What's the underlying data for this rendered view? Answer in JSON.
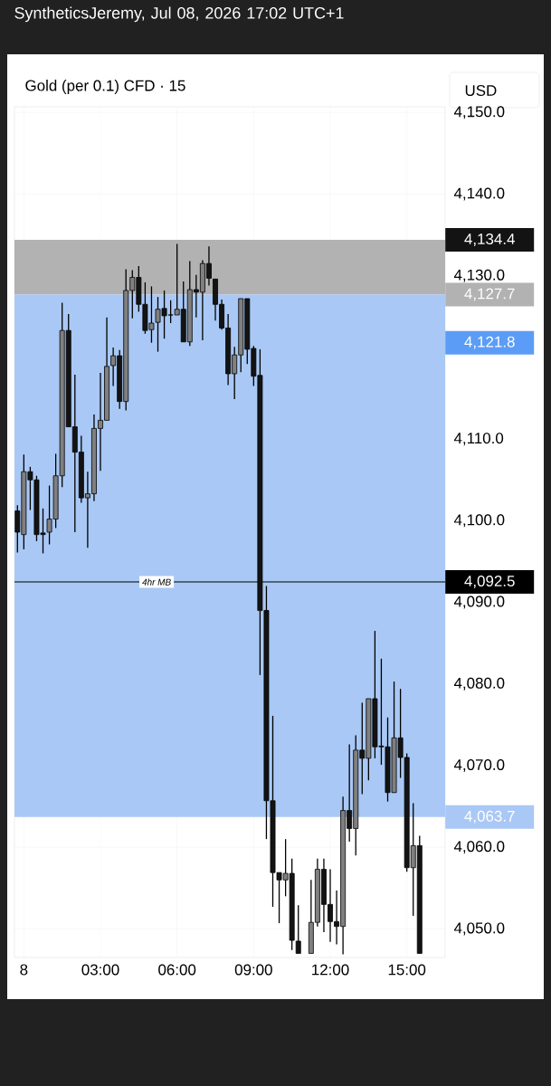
{
  "chart_data": {
    "type": "candlestick",
    "title": "Gold (per 0.1) CFD · 15",
    "subtitle": "SyntheticsJeremy, Jul 08, 2026 17:02 UTC+1",
    "ylabel": "USD",
    "x": [
      "2026-07-07T23:45",
      "2026-07-08T00:00",
      "2026-07-08T00:15",
      "2026-07-08T00:30",
      "2026-07-08T00:45",
      "2026-07-08T01:00",
      "2026-07-08T01:15",
      "2026-07-08T01:30",
      "2026-07-08T01:45",
      "2026-07-08T02:00",
      "2026-07-08T02:15",
      "2026-07-08T02:30",
      "2026-07-08T02:45",
      "2026-07-08T03:00",
      "2026-07-08T03:15",
      "2026-07-08T03:30",
      "2026-07-08T03:45",
      "2026-07-08T04:00",
      "2026-07-08T04:15",
      "2026-07-08T04:30",
      "2026-07-08T04:45",
      "2026-07-08T05:00",
      "2026-07-08T05:15",
      "2026-07-08T05:30",
      "2026-07-08T05:45",
      "2026-07-08T06:00",
      "2026-07-08T06:15",
      "2026-07-08T06:30",
      "2026-07-08T06:45",
      "2026-07-08T07:00",
      "2026-07-08T07:15",
      "2026-07-08T07:30",
      "2026-07-08T07:45",
      "2026-07-08T08:00",
      "2026-07-08T08:15",
      "2026-07-08T08:30",
      "2026-07-08T08:45",
      "2026-07-08T09:00",
      "2026-07-08T09:15",
      "2026-07-08T09:30",
      "2026-07-08T09:45",
      "2026-07-08T10:00",
      "2026-07-08T10:15",
      "2026-07-08T10:30",
      "2026-07-08T10:45",
      "2026-07-08T11:15",
      "2026-07-08T11:30",
      "2026-07-08T11:45",
      "2026-07-08T12:00",
      "2026-07-08T12:15",
      "2026-07-08T12:30",
      "2026-07-08T12:45",
      "2026-07-08T13:00",
      "2026-07-08T13:15",
      "2026-07-08T13:30",
      "2026-07-08T13:45",
      "2026-07-08T14:00",
      "2026-07-08T14:15",
      "2026-07-08T14:30",
      "2026-07-08T14:45",
      "2026-07-08T15:00",
      "2026-07-08T15:15",
      "2026-07-08T15:30"
    ],
    "ohlc": [
      [
        4101.2,
        4101.9,
        4096.1,
        4098.6
      ],
      [
        4098.3,
        4108.1,
        4096.5,
        4106.0
      ],
      [
        4106.0,
        4106.6,
        4101.3,
        4105.0
      ],
      [
        4105.0,
        4105.5,
        4097.5,
        4098.3
      ],
      [
        4098.5,
        4101.5,
        4096.0,
        4098.3
      ],
      [
        4098.6,
        4104.3,
        4097.1,
        4100.2
      ],
      [
        4100.2,
        4108.2,
        4099.1,
        4105.5
      ],
      [
        4105.5,
        4126.7,
        4104.1,
        4123.3
      ],
      [
        4123.3,
        4125.3,
        4111.5,
        4111.5
      ],
      [
        4111.5,
        4117.9,
        4098.6,
        4108.4
      ],
      [
        4108.4,
        4110.4,
        4102.2,
        4102.8
      ],
      [
        4102.8,
        4106.0,
        4096.7,
        4103.3
      ],
      [
        4103.3,
        4113.0,
        4102.4,
        4111.3
      ],
      [
        4111.3,
        4118.1,
        4106.1,
        4112.3
      ],
      [
        4112.3,
        4124.9,
        4112.3,
        4118.9
      ],
      [
        4119.0,
        4121.2,
        4116.5,
        4120.2
      ],
      [
        4120.2,
        4120.9,
        4113.7,
        4114.6
      ],
      [
        4114.6,
        4130.8,
        4113.5,
        4128.2
      ],
      [
        4128.2,
        4130.7,
        4124.8,
        4129.8
      ],
      [
        4129.8,
        4131.2,
        4125.6,
        4126.5
      ],
      [
        4126.5,
        4129.2,
        4122.9,
        4123.3
      ],
      [
        4123.4,
        4128.7,
        4121.8,
        4124.2
      ],
      [
        4124.3,
        4127.4,
        4120.7,
        4125.9
      ],
      [
        4126.0,
        4128.2,
        4122.3,
        4125.1
      ],
      [
        4125.2,
        4127.0,
        4124.2,
        4125.2
      ],
      [
        4125.2,
        4133.9,
        4125.2,
        4125.9
      ],
      [
        4125.9,
        4129.3,
        4121.9,
        4121.9
      ],
      [
        4121.9,
        4131.8,
        4121.4,
        4128.3
      ],
      [
        4128.3,
        4130.1,
        4124.9,
        4128.0
      ],
      [
        4128.0,
        4131.9,
        4122.1,
        4131.5
      ],
      [
        4131.5,
        4133.6,
        4128.8,
        4129.7
      ],
      [
        4129.6,
        4129.6,
        4124.5,
        4126.5
      ],
      [
        4126.5,
        4127.1,
        4123.4,
        4123.6
      ],
      [
        4123.6,
        4125.3,
        4116.6,
        4118.0
      ],
      [
        4118.0,
        4121.3,
        4114.9,
        4120.3
      ],
      [
        4120.3,
        4127.2,
        4118.2,
        4127.2
      ],
      [
        4127.2,
        4127.2,
        4119.2,
        4121.0
      ],
      [
        4121.1,
        4121.4,
        4116.5,
        4117.7
      ],
      [
        4117.8,
        4121.0,
        4081.1,
        4089.0
      ],
      [
        4089.0,
        4092.0,
        4061.0,
        4065.7
      ],
      [
        4065.7,
        4076.1,
        4052.7,
        4056.9
      ],
      [
        4056.9,
        4056.9,
        4050.7,
        4056.0
      ],
      [
        4056.0,
        4061.0,
        4054.0,
        4056.8
      ],
      [
        4056.8,
        4058.6,
        4047.4,
        4048.6
      ],
      [
        4048.5,
        4052.9,
        4047.0,
        4047.0
      ],
      [
        4047.0,
        4056.0,
        4047.0,
        4050.8
      ],
      [
        4050.8,
        4058.6,
        4050.3,
        4057.3
      ],
      [
        4057.3,
        4058.6,
        4049.6,
        4053.0
      ],
      [
        4053.0,
        4057.3,
        4048.4,
        4050.9
      ],
      [
        4050.9,
        4054.7,
        4048.1,
        4050.3
      ],
      [
        4050.3,
        4066.2,
        4046.9,
        4064.5
      ],
      [
        4064.5,
        4072.6,
        4060.7,
        4062.3
      ],
      [
        4062.3,
        4073.7,
        4059.0,
        4071.9
      ],
      [
        4071.9,
        4077.7,
        4066.5,
        4070.9
      ],
      [
        4070.9,
        4078.2,
        4068.2,
        4078.2
      ],
      [
        4078.2,
        4086.5,
        4070.9,
        4072.3
      ],
      [
        4072.4,
        4083.1,
        4070.1,
        4072.3
      ],
      [
        4072.3,
        4075.9,
        4065.6,
        4066.7
      ],
      [
        4066.7,
        4080.3,
        4066.7,
        4073.4
      ],
      [
        4073.4,
        4079.4,
        4068.5,
        4071.0
      ],
      [
        4071.0,
        4071.5,
        4057.0,
        4057.5
      ],
      [
        4057.5,
        4065.4,
        4051.6,
        4060.2
      ],
      [
        4060.2,
        4061.4,
        4047.0,
        4047.0
      ]
    ],
    "xlim": [
      "2026-07-07T23:38",
      "2026-07-08T16:30"
    ],
    "xticks": [
      {
        "value": "2026-07-08T00:00",
        "label": "8"
      },
      {
        "value": "2026-07-08T03:00",
        "label": "03:00"
      },
      {
        "value": "2026-07-08T06:00",
        "label": "06:00"
      },
      {
        "value": "2026-07-08T09:00",
        "label": "09:00"
      },
      {
        "value": "2026-07-08T12:00",
        "label": "12:00"
      },
      {
        "value": "2026-07-08T15:00",
        "label": "15:00"
      }
    ],
    "ylim": [
      4046.5,
      4150.7
    ],
    "yticks": [
      {
        "value": 4050,
        "label": "4,050.0"
      },
      {
        "value": 4060,
        "label": "4,060.0"
      },
      {
        "value": 4070,
        "label": "4,070.0"
      },
      {
        "value": 4080,
        "label": "4,080.0"
      },
      {
        "value": 4090,
        "label": "4,090.0"
      },
      {
        "value": 4100,
        "label": "4,100.0"
      },
      {
        "value": 4110,
        "label": "4,110.0"
      },
      {
        "value": 4120,
        "label": null
      },
      {
        "value": 4130,
        "label": "4,130.0"
      },
      {
        "value": 4140,
        "label": "4,140.0"
      },
      {
        "value": 4150,
        "label": "4,150.0"
      }
    ],
    "grid": true,
    "ref_lines": [
      {
        "axis": "y",
        "value": 4092.5,
        "label": "4hr MB",
        "color": "#000000"
      }
    ],
    "bands": [
      {
        "axis": "y",
        "from": 4127.7,
        "to": 4134.4,
        "color": "#b2b2b2"
      },
      {
        "axis": "y",
        "from": 4063.7,
        "to": 4127.7,
        "color": "#a9c8f5"
      }
    ],
    "annotations": [
      {
        "text": "4,134.4",
        "x": "2026-07-08T16:30",
        "y": 4134.4
      },
      {
        "text": "4,127.7",
        "x": "2026-07-08T16:30",
        "y": 4127.7
      },
      {
        "text": "4,121.8",
        "x": "2026-07-08T16:30",
        "y": 4121.8
      },
      {
        "text": "4,092.5",
        "x": "2026-07-08T16:30",
        "y": 4092.5
      },
      {
        "text": "4,063.7",
        "x": "2026-07-08T16:30",
        "y": 4063.7
      }
    ]
  }
}
